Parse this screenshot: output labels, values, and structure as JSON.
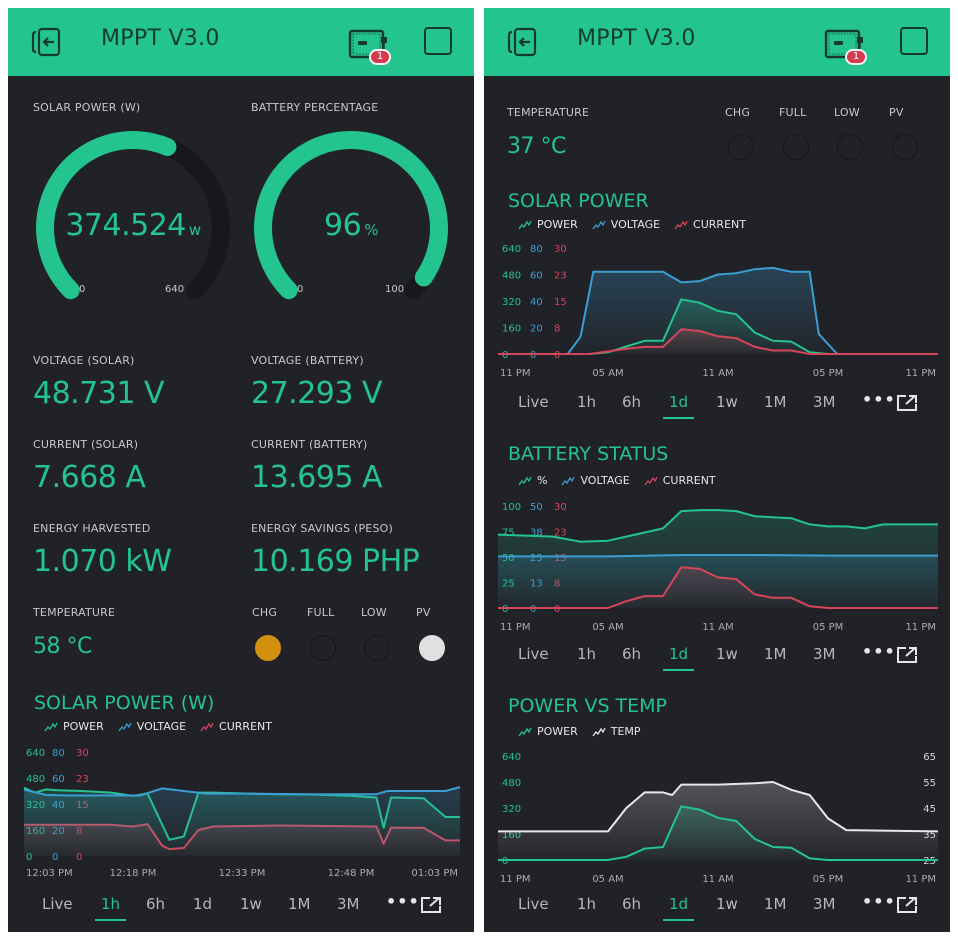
{
  "colors": {
    "accent": "#23c48e",
    "appbar": "#23c48e",
    "background": "#212227",
    "voltage": "#3a9ed3",
    "current": "#d6455a",
    "temp": "#e8e8e8",
    "led_chg": "#d3900e",
    "led_pv": "#e0e0e0",
    "led_off": "#212227"
  },
  "left": {
    "app_title": "MPPT V3.0",
    "badge_count": "1",
    "gauges": [
      {
        "label": "SOLAR POWER (W)",
        "value": "374.524",
        "unit": "w",
        "numeric": 374.524,
        "min": "0",
        "max": "640",
        "min_val": 0,
        "max_val": 640
      },
      {
        "label": "BATTERY PERCENTAGE",
        "value": "96",
        "unit": "%",
        "numeric": 96,
        "min": "0",
        "max": "100",
        "min_val": 0,
        "max_val": 100
      }
    ],
    "readings": [
      {
        "label": "VOLTAGE (SOLAR)",
        "value": "48.731 V"
      },
      {
        "label": "VOLTAGE (BATTERY)",
        "value": "27.293 V"
      },
      {
        "label": "CURRENT (SOLAR)",
        "value": "7.668 A"
      },
      {
        "label": "CURRENT (BATTERY)",
        "value": "13.695 A"
      },
      {
        "label": "ENERGY HARVESTED",
        "value": "1.070 kW"
      },
      {
        "label": "ENERGY SAVINGS (PESO)",
        "value": "10.169 PHP"
      }
    ],
    "temperature": {
      "label": "TEMPERATURE",
      "value": "58 °C"
    },
    "leds": [
      {
        "label": "CHG",
        "state": "on",
        "color": "#d3900e"
      },
      {
        "label": "FULL",
        "state": "off",
        "color": "#212227"
      },
      {
        "label": "LOW",
        "state": "off",
        "color": "#212227"
      },
      {
        "label": "PV",
        "state": "on",
        "color": "#e0e0e0"
      }
    ],
    "tabs": {
      "items": [
        "Live",
        "1h",
        "6h",
        "1d",
        "1w",
        "1M",
        "3M"
      ],
      "active": "1h",
      "more": "•••"
    }
  },
  "right": {
    "app_title": "MPPT V3.0",
    "badge_count": "1",
    "temperature": {
      "label": "TEMPERATURE",
      "value": "37 °C"
    },
    "leds": [
      {
        "label": "CHG",
        "state": "off",
        "color": "#212227"
      },
      {
        "label": "FULL",
        "state": "off",
        "color": "#212227"
      },
      {
        "label": "LOW",
        "state": "off",
        "color": "#212227"
      },
      {
        "label": "PV",
        "state": "off",
        "color": "#212227"
      }
    ],
    "tabs": [
      {
        "items": [
          "Live",
          "1h",
          "6h",
          "1d",
          "1w",
          "1M",
          "3M"
        ],
        "active": "1d",
        "more": "•••"
      },
      {
        "items": [
          "Live",
          "1h",
          "6h",
          "1d",
          "1w",
          "1M",
          "3M"
        ],
        "active": "1d",
        "more": "•••"
      },
      {
        "items": [
          "Live",
          "1h",
          "6h",
          "1d",
          "1w",
          "1M",
          "3M"
        ],
        "active": "1d",
        "more": "•••"
      }
    ]
  },
  "chart_data": [
    {
      "id": "left-solar",
      "type": "area",
      "title": "SOLAR POWER (W)",
      "x_ticks": [
        "12:03 PM",
        "12:18 PM",
        "12:33 PM",
        "12:48 PM",
        "01:03 PM"
      ],
      "x_range": [
        0,
        60
      ],
      "series": [
        {
          "name": "POWER",
          "color": "#23c48e",
          "ticks": [
            "640",
            "480",
            "320",
            "160",
            "0"
          ],
          "range": [
            0,
            640
          ],
          "x": [
            0,
            1.5,
            3,
            4.5,
            8,
            12,
            15,
            17,
            20,
            22,
            24,
            26,
            30,
            35,
            40,
            45,
            48.5,
            49.5,
            50.5,
            55,
            58,
            60
          ],
          "values": [
            420,
            390,
            410,
            405,
            400,
            390,
            370,
            385,
            100,
            120,
            390,
            390,
            385,
            380,
            378,
            370,
            360,
            175,
            360,
            355,
            240,
            240
          ]
        },
        {
          "name": "VOLTAGE",
          "color": "#3a9ed3",
          "ticks": [
            "80",
            "60",
            "40",
            "20",
            "0"
          ],
          "range": [
            0,
            80
          ],
          "x": [
            0,
            1.5,
            3,
            6,
            12,
            16,
            19,
            22,
            25,
            30,
            40,
            48.5,
            50,
            55,
            58,
            60
          ],
          "values": [
            51,
            49,
            47,
            46.5,
            46.5,
            46.5,
            52,
            50,
            48,
            48,
            47.5,
            47.5,
            50,
            50,
            50,
            53
          ]
        },
        {
          "name": "CURRENT",
          "color": "#d6455a",
          "ticks": [
            "30",
            "23",
            "15",
            "8",
            "0"
          ],
          "range": [
            0,
            30
          ],
          "x": [
            0,
            12,
            15,
            17,
            19,
            20,
            22,
            24,
            26,
            35,
            45,
            48.5,
            49.5,
            50.5,
            55,
            58,
            60
          ],
          "values": [
            9,
            9,
            8.5,
            9.2,
            3,
            2,
            2.3,
            7.5,
            8.5,
            8.8,
            8.6,
            8.5,
            3.5,
            8.2,
            8.1,
            4.5,
            4.5
          ]
        }
      ]
    },
    {
      "id": "right-solar",
      "type": "area",
      "title": "SOLAR POWER",
      "x_ticks": [
        "11 PM",
        "05 AM",
        "11 AM",
        "05 PM",
        "11 PM"
      ],
      "x_range": [
        0,
        24
      ],
      "series": [
        {
          "name": "POWER",
          "color": "#23c48e",
          "ticks": [
            "640",
            "480",
            "320",
            "160",
            "0"
          ],
          "range": [
            0,
            640
          ],
          "x": [
            0,
            5,
            6,
            7,
            8,
            9,
            10,
            11,
            12,
            13,
            14,
            15,
            16,
            17,
            18,
            19,
            24
          ],
          "values": [
            0,
            0,
            10,
            45,
            80,
            80,
            330,
            310,
            260,
            240,
            130,
            80,
            75,
            10,
            0,
            0,
            0
          ]
        },
        {
          "name": "VOLTAGE",
          "color": "#3a9ed3",
          "ticks": [
            "80",
            "60",
            "40",
            "20",
            "0"
          ],
          "range": [
            0,
            80
          ],
          "x": [
            0,
            3.8,
            4.5,
            5.2,
            9,
            10,
            11,
            12,
            13,
            14,
            15,
            16,
            17,
            17.5,
            18.5,
            24
          ],
          "values": [
            0,
            0,
            13,
            62,
            62,
            54,
            55,
            60,
            61,
            64,
            65,
            62,
            62,
            15,
            0,
            0
          ]
        },
        {
          "name": "CURRENT",
          "color": "#d6455a",
          "ticks": [
            "30",
            "23",
            "15",
            "8",
            "0"
          ],
          "range": [
            0,
            30
          ],
          "x": [
            0,
            5,
            7,
            8,
            9,
            10,
            11,
            12,
            13,
            14,
            15,
            16,
            17,
            18,
            24
          ],
          "values": [
            0,
            0,
            1.5,
            2,
            2,
            7,
            6.5,
            5,
            4.5,
            2,
            1,
            1,
            0,
            0,
            0
          ]
        }
      ]
    },
    {
      "id": "right-battery",
      "type": "area",
      "title": "BATTERY STATUS",
      "x_ticks": [
        "11 PM",
        "05 AM",
        "11 AM",
        "05 PM",
        "11 PM"
      ],
      "x_range": [
        0,
        24
      ],
      "series": [
        {
          "name": "%",
          "color": "#23c48e",
          "ticks": [
            "100",
            "75",
            "50",
            "25",
            "0"
          ],
          "range": [
            0,
            100
          ],
          "x": [
            0,
            3,
            4.5,
            6,
            8,
            9,
            10,
            11,
            12,
            13,
            14,
            15,
            16,
            17,
            18,
            19,
            20,
            21,
            22,
            24
          ],
          "values": [
            72,
            70,
            65,
            66,
            74,
            78,
            95,
            96,
            96,
            95,
            90,
            89,
            88,
            82,
            80,
            80,
            78,
            82,
            82,
            82
          ]
        },
        {
          "name": "VOLTAGE",
          "color": "#3a9ed3",
          "ticks": [
            "50",
            "38",
            "25",
            "13",
            "0"
          ],
          "range": [
            0,
            50
          ],
          "x": [
            0,
            6,
            10,
            14,
            18,
            24
          ],
          "values": [
            25.3,
            25.3,
            26,
            26,
            25.7,
            25.7
          ]
        },
        {
          "name": "CURRENT",
          "color": "#d6455a",
          "ticks": [
            "30",
            "23",
            "15",
            "8",
            "0"
          ],
          "range": [
            0,
            30
          ],
          "x": [
            0,
            6,
            7,
            8,
            9,
            10,
            11,
            12,
            13,
            14,
            15,
            16,
            17,
            18,
            24
          ],
          "values": [
            0,
            0,
            2,
            3.5,
            3.5,
            12,
            11.5,
            9,
            8.5,
            4,
            3,
            3,
            0.5,
            0,
            0
          ]
        }
      ]
    },
    {
      "id": "right-power-temp",
      "type": "area",
      "title": "POWER VS TEMP",
      "x_ticks": [
        "11 PM",
        "05 AM",
        "11 AM",
        "05 PM",
        "11 PM"
      ],
      "x_range": [
        0,
        24
      ],
      "series": [
        {
          "name": "POWER",
          "color": "#23c48e",
          "axis": "left",
          "ticks": [
            "640",
            "480",
            "320",
            "160",
            "0"
          ],
          "range": [
            0,
            640
          ],
          "x": [
            0,
            6,
            7,
            8,
            9,
            10,
            11,
            12,
            13,
            14,
            15,
            16,
            17,
            18,
            24
          ],
          "values": [
            0,
            0,
            20,
            70,
            80,
            330,
            310,
            260,
            240,
            130,
            80,
            75,
            10,
            0,
            0
          ]
        },
        {
          "name": "TEMP",
          "color": "#e8e8e8",
          "axis": "right",
          "ticks": [
            "65",
            "55",
            "45",
            "35",
            "25"
          ],
          "range": [
            25,
            65
          ],
          "x": [
            0,
            6,
            7,
            8,
            9,
            9.5,
            10,
            12,
            14,
            15,
            16,
            17,
            18,
            19,
            24
          ],
          "values": [
            36,
            36,
            45,
            51,
            51,
            50,
            54,
            54,
            54.5,
            55,
            52,
            50,
            41,
            36.5,
            36
          ]
        }
      ]
    }
  ]
}
